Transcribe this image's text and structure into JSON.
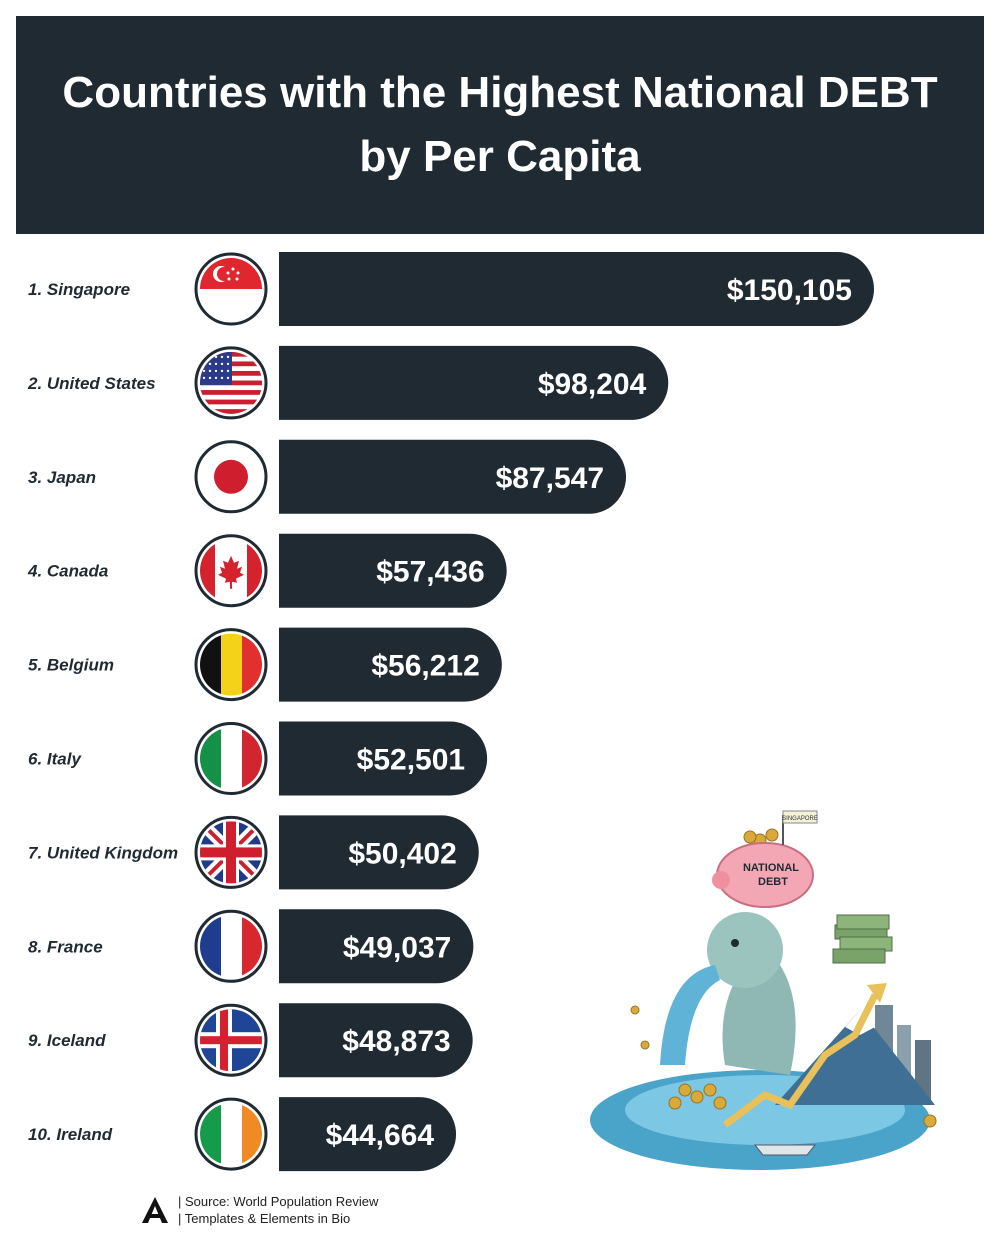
{
  "header": {
    "title": "Countries with the Highest National DEBT by Per Capita"
  },
  "chart_data": {
    "type": "bar",
    "orientation": "horizontal",
    "title": "Countries with the Highest National DEBT by Per Capita",
    "categories": [
      "1. Singapore",
      "2. United States",
      "3. Japan",
      "4. Canada",
      "5. Belgium",
      "6. Italy",
      "7. United Kingdom",
      "8. France",
      "9. Iceland",
      "10. Ireland"
    ],
    "values": [
      150105,
      98204,
      87547,
      57436,
      56212,
      52501,
      50402,
      49037,
      48873,
      44664
    ],
    "value_labels": [
      "$150,105",
      "$98,204",
      "$87,547",
      "$57,436",
      "$56,212",
      "$52,501",
      "$50,402",
      "$49,037",
      "$48,873",
      "$44,664"
    ],
    "flags": [
      "singapore-flag",
      "usa-flag",
      "japan-flag",
      "canada-flag",
      "belgium-flag",
      "italy-flag",
      "uk-flag",
      "france-flag",
      "iceland-flag",
      "ireland-flag"
    ],
    "bar_color": "#1f2a33",
    "grid": false,
    "legend": "none"
  },
  "illustration": {
    "sign_text": "SINGAPORE",
    "pig_text_1": "NATIONAL",
    "pig_text_2": "DEBT"
  },
  "footer": {
    "source_line": "| Source: World Population Review",
    "templates_line": "| Templates & Elements in Bio"
  },
  "colors": {
    "header_bg": "#1f2a33",
    "bar": "#1f2a33",
    "text_dark": "#1f2a33"
  }
}
